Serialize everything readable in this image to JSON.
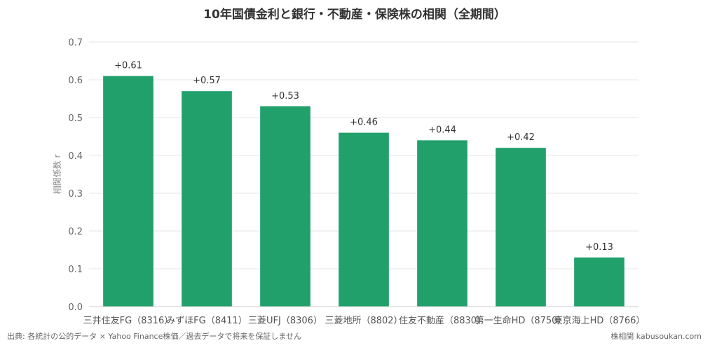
{
  "chart_data": {
    "type": "bar",
    "title": "10年国債金利と銀行・不動産・保険株の相関（全期間）",
    "ylabel": "相関係数 r",
    "xlabel": "",
    "ylim": [
      0,
      0.7
    ],
    "yticks": [
      "0.0",
      "0.1",
      "0.2",
      "0.3",
      "0.4",
      "0.5",
      "0.6",
      "0.7"
    ],
    "categories": [
      "三井住友FG（8316）",
      "みずほFG（8411）",
      "三菱UFJ（8306）",
      "三菱地所（8802）",
      "住友不動産（8830）",
      "第一生命HD（8750）",
      "東京海上HD（8766）"
    ],
    "values": [
      0.61,
      0.57,
      0.53,
      0.46,
      0.44,
      0.42,
      0.13
    ],
    "data_labels": [
      "+0.61",
      "+0.57",
      "+0.53",
      "+0.46",
      "+0.44",
      "+0.42",
      "+0.13"
    ],
    "bar_color": "#21a06b",
    "grid": true,
    "legend": "none"
  },
  "footer": {
    "source": "出典: 各統計の公的データ × Yahoo Finance株価／過去データで将来を保証しません",
    "brand": "株相関 kabusoukan.com"
  }
}
